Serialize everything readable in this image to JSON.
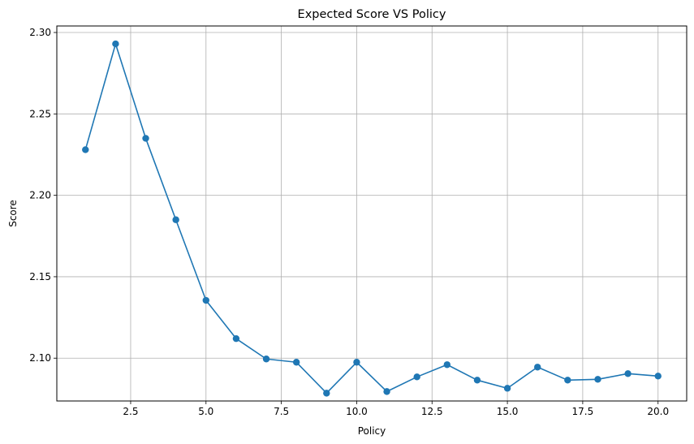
{
  "chart_data": {
    "type": "line",
    "title": "Expected Score VS Policy",
    "xlabel": "Policy",
    "ylabel": "Score",
    "xlim": [
      0.05,
      20.95
    ],
    "ylim": [
      2.0737,
      2.304
    ],
    "grid": true,
    "marker": "circle",
    "color": "#1f77b4",
    "x_ticks": [
      {
        "value": 2.5,
        "label": "2.5"
      },
      {
        "value": 5.0,
        "label": "5.0"
      },
      {
        "value": 7.5,
        "label": "7.5"
      },
      {
        "value": 10.0,
        "label": "10.0"
      },
      {
        "value": 12.5,
        "label": "12.5"
      },
      {
        "value": 15.0,
        "label": "15.0"
      },
      {
        "value": 17.5,
        "label": "17.5"
      },
      {
        "value": 20.0,
        "label": "20.0"
      }
    ],
    "y_ticks": [
      {
        "value": 2.1,
        "label": "2.10"
      },
      {
        "value": 2.15,
        "label": "2.15"
      },
      {
        "value": 2.2,
        "label": "2.20"
      },
      {
        "value": 2.25,
        "label": "2.25"
      },
      {
        "value": 2.3,
        "label": "2.30"
      }
    ],
    "series": [
      {
        "x": [
          1,
          2,
          3,
          4,
          5,
          6,
          7,
          8,
          9,
          10,
          11,
          12,
          13,
          14,
          15,
          16,
          17,
          18,
          19,
          20
        ],
        "values": [
          2.228,
          2.293,
          2.235,
          2.185,
          2.1355,
          2.112,
          2.0995,
          2.0975,
          2.0785,
          2.0975,
          2.0795,
          2.0885,
          2.096,
          2.0865,
          2.0815,
          2.0945,
          2.0865,
          2.087,
          2.0905,
          2.089
        ]
      }
    ]
  }
}
